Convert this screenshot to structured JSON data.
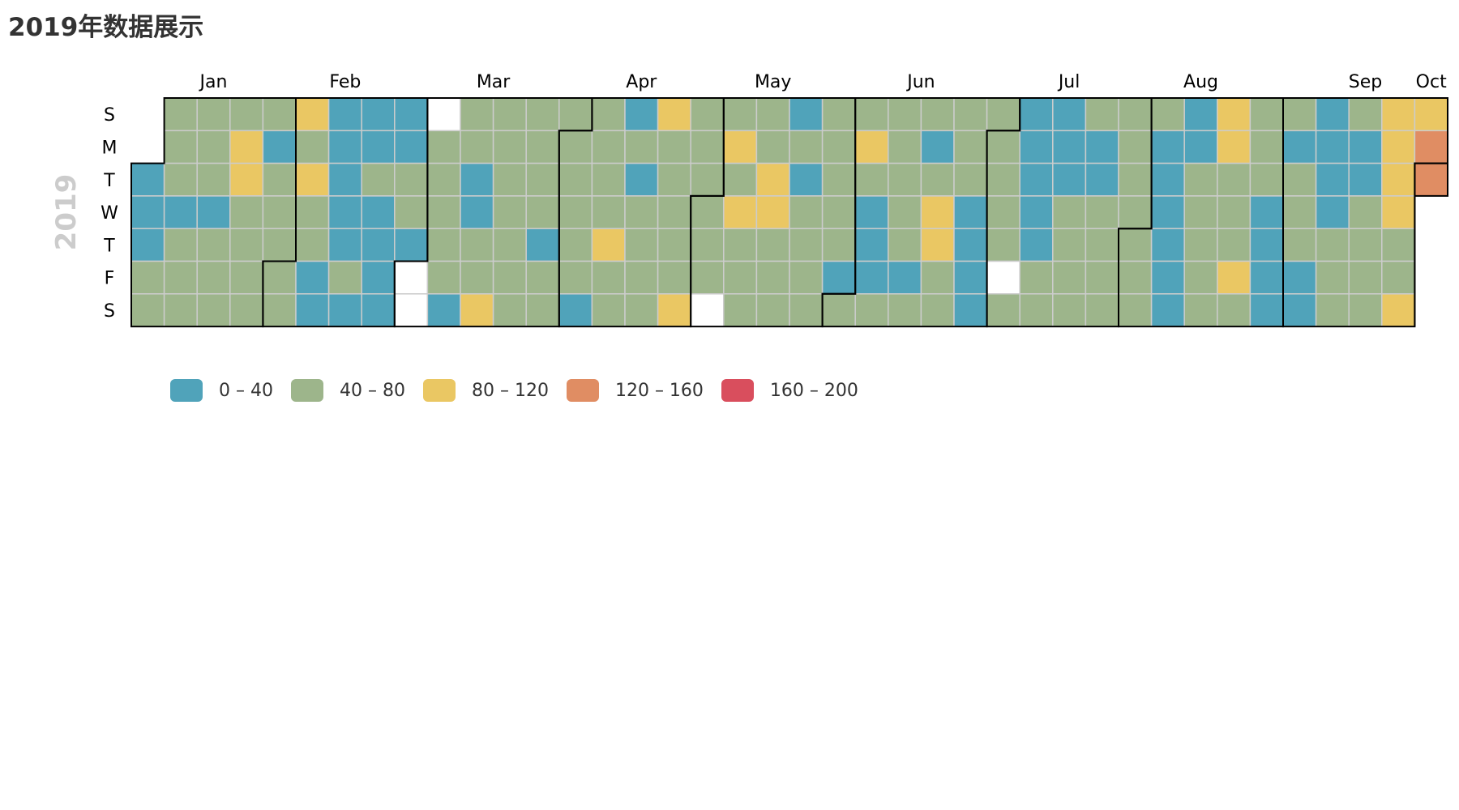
{
  "title": "2019年数据展示",
  "chart_data": {
    "type": "heatmap",
    "calendar_year": "2019",
    "month_labels": [
      "Jan",
      "Feb",
      "Mar",
      "Apr",
      "May",
      "Jun",
      "Jul",
      "Aug",
      "Sep",
      "Oct"
    ],
    "day_labels": [
      "S",
      "M",
      "T",
      "W",
      "T",
      "F",
      "S"
    ],
    "range_start": "2019-01-01",
    "range_end": "2019-10-01",
    "legend": {
      "type": "piecewise",
      "pieces": [
        {
          "label": "0 – 40",
          "min": 0,
          "max": 40,
          "color": "#50a3ba"
        },
        {
          "label": "40 – 80",
          "min": 40,
          "max": 80,
          "color": "#9db58b"
        },
        {
          "label": "80 – 120",
          "min": 80,
          "max": 120,
          "color": "#eac763"
        },
        {
          "label": "120 – 160",
          "min": 120,
          "max": 160,
          "color": "#e08d63"
        },
        {
          "label": "160 – 200",
          "min": 160,
          "max": 200,
          "color": "#d94e5d"
        }
      ]
    },
    "empty_color": "#ffffff",
    "value_class_legend": "0 = 0–40, 1 = 40–80, 2 = 80–120, 3 = 120–160, 4 = 160–200, -1 = no data",
    "weekly_value_classes": [
      [
        -9,
        -9,
        0,
        0,
        0,
        1,
        1
      ],
      [
        1,
        1,
        1,
        0,
        1,
        1,
        1
      ],
      [
        1,
        1,
        1,
        0,
        1,
        1,
        1
      ],
      [
        1,
        2,
        2,
        1,
        1,
        1,
        1
      ],
      [
        1,
        0,
        1,
        1,
        1,
        1,
        1
      ],
      [
        2,
        1,
        2,
        1,
        1,
        0,
        0
      ],
      [
        0,
        0,
        0,
        0,
        0,
        1,
        0
      ],
      [
        0,
        0,
        1,
        0,
        0,
        0,
        0
      ],
      [
        0,
        0,
        1,
        1,
        0,
        -1,
        -1
      ],
      [
        -1,
        1,
        1,
        1,
        1,
        1,
        0
      ],
      [
        1,
        1,
        0,
        0,
        1,
        1,
        2
      ],
      [
        1,
        1,
        1,
        1,
        1,
        1,
        1
      ],
      [
        1,
        1,
        1,
        1,
        0,
        1,
        1
      ],
      [
        1,
        1,
        1,
        1,
        1,
        1,
        0
      ],
      [
        1,
        1,
        1,
        1,
        2,
        1,
        1
      ],
      [
        0,
        1,
        0,
        1,
        1,
        1,
        1
      ],
      [
        2,
        1,
        1,
        1,
        1,
        1,
        2
      ],
      [
        1,
        1,
        1,
        1,
        1,
        1,
        -1
      ],
      [
        1,
        2,
        1,
        2,
        1,
        1,
        1
      ],
      [
        1,
        1,
        2,
        2,
        1,
        1,
        1
      ],
      [
        0,
        1,
        0,
        1,
        1,
        1,
        1
      ],
      [
        1,
        1,
        1,
        1,
        1,
        0,
        1
      ],
      [
        1,
        2,
        1,
        0,
        0,
        0,
        1
      ],
      [
        1,
        1,
        1,
        1,
        1,
        0,
        1
      ],
      [
        1,
        0,
        1,
        2,
        2,
        1,
        1
      ],
      [
        1,
        1,
        1,
        0,
        0,
        0,
        0
      ],
      [
        1,
        1,
        1,
        1,
        1,
        -1,
        1
      ],
      [
        0,
        0,
        0,
        0,
        0,
        1,
        1
      ],
      [
        0,
        0,
        0,
        1,
        1,
        1,
        1
      ],
      [
        1,
        0,
        0,
        1,
        1,
        1,
        1
      ],
      [
        1,
        1,
        1,
        1,
        1,
        1,
        1
      ],
      [
        1,
        0,
        0,
        0,
        0,
        0,
        0
      ],
      [
        0,
        0,
        1,
        1,
        1,
        1,
        1
      ],
      [
        2,
        2,
        1,
        1,
        1,
        2,
        1
      ],
      [
        1,
        1,
        1,
        0,
        0,
        0,
        0
      ],
      [
        1,
        0,
        1,
        1,
        1,
        0,
        0
      ],
      [
        0,
        0,
        0,
        0,
        1,
        1,
        1
      ],
      [
        1,
        0,
        0,
        1,
        1,
        1,
        1
      ],
      [
        2,
        2,
        2,
        2,
        1,
        1,
        2
      ],
      [
        2,
        3,
        3,
        -9,
        -9,
        -9,
        -9
      ]
    ]
  }
}
